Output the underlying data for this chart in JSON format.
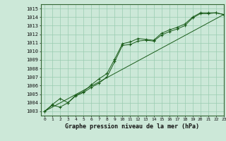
{
  "title": "Graphe pression niveau de la mer (hPa)",
  "background_color": "#cce8d8",
  "line_color": "#1a5c1a",
  "grid_color": "#99ccb0",
  "xlim": [
    -0.5,
    23
  ],
  "ylim": [
    1002.5,
    1015.5
  ],
  "yticks": [
    1003,
    1004,
    1005,
    1006,
    1007,
    1008,
    1009,
    1010,
    1011,
    1012,
    1013,
    1014,
    1015
  ],
  "xticks": [
    0,
    1,
    2,
    3,
    4,
    5,
    6,
    7,
    8,
    9,
    10,
    11,
    12,
    13,
    14,
    15,
    16,
    17,
    18,
    19,
    20,
    21,
    22,
    23
  ],
  "series1_x": [
    0,
    1,
    2,
    3,
    4,
    5,
    6,
    7,
    8,
    9,
    10,
    11,
    12,
    13,
    14,
    15,
    16,
    17,
    18,
    19,
    20,
    21,
    22,
    23
  ],
  "series1_y": [
    1003.0,
    1003.7,
    1003.5,
    1004.0,
    1004.8,
    1005.2,
    1005.8,
    1006.3,
    1007.0,
    1008.8,
    1010.7,
    1010.8,
    1011.2,
    1011.3,
    1011.2,
    1011.9,
    1012.3,
    1012.6,
    1013.0,
    1013.9,
    1014.4,
    1014.4,
    1014.5,
    1014.3
  ],
  "series2_x": [
    0,
    1,
    2,
    3,
    4,
    5,
    6,
    7,
    8,
    9,
    10,
    11,
    12,
    13,
    14,
    15,
    16,
    17,
    18,
    19,
    20,
    21,
    22,
    23
  ],
  "series2_y": [
    1003.0,
    1003.8,
    1004.5,
    1004.0,
    1004.9,
    1005.3,
    1006.1,
    1006.8,
    1007.4,
    1009.1,
    1010.9,
    1011.1,
    1011.5,
    1011.4,
    1011.3,
    1012.1,
    1012.5,
    1012.8,
    1013.2,
    1014.0,
    1014.5,
    1014.5,
    1014.5,
    1014.3
  ],
  "trend_x": [
    0,
    23
  ],
  "trend_y": [
    1003.0,
    1014.3
  ],
  "marker": "+"
}
